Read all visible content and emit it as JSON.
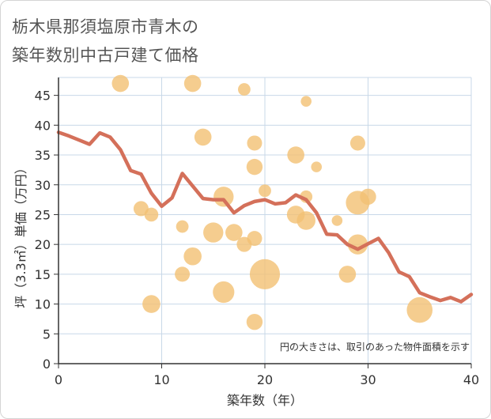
{
  "title_line1": "栃木県那須塩原市青木の",
  "title_line2": "築年数別中古戸建て価格",
  "chart_data": {
    "type": "scatter",
    "title": "栃木県那須塩原市青木の築年数別中古戸建て価格",
    "xlabel": "築年数（年）",
    "ylabel": "坪（3.3㎡）単価（万円）",
    "xlim": [
      0,
      40
    ],
    "ylim": [
      0,
      48
    ],
    "xticks": [
      0,
      10,
      20,
      30,
      40
    ],
    "yticks": [
      0,
      5,
      10,
      15,
      20,
      25,
      30,
      35,
      40,
      45
    ],
    "grid": true,
    "annotation": "円の大きさは、取引のあった物件面積を示す",
    "colors": {
      "bubble": "#f3c073",
      "trend": "#d4705a",
      "grid": "#c8d8e8",
      "axis": "#333333"
    },
    "bubbles": [
      {
        "x": 6,
        "y": 47,
        "size": 3
      },
      {
        "x": 13,
        "y": 47,
        "size": 3
      },
      {
        "x": 18,
        "y": 46,
        "size": 1
      },
      {
        "x": 24,
        "y": 44,
        "size": 0.5
      },
      {
        "x": 14,
        "y": 38,
        "size": 3
      },
      {
        "x": 19,
        "y": 37,
        "size": 2
      },
      {
        "x": 29,
        "y": 37,
        "size": 2
      },
      {
        "x": 23,
        "y": 35,
        "size": 3
      },
      {
        "x": 25,
        "y": 33,
        "size": 0.5
      },
      {
        "x": 19,
        "y": 33,
        "size": 2.5
      },
      {
        "x": 20,
        "y": 29,
        "size": 1
      },
      {
        "x": 16,
        "y": 28,
        "size": 5
      },
      {
        "x": 24,
        "y": 28,
        "size": 1
      },
      {
        "x": 29,
        "y": 27,
        "size": 8
      },
      {
        "x": 30,
        "y": 28,
        "size": 2.5
      },
      {
        "x": 8,
        "y": 26,
        "size": 2
      },
      {
        "x": 9,
        "y": 25,
        "size": 1.5
      },
      {
        "x": 23,
        "y": 25,
        "size": 3.5
      },
      {
        "x": 24,
        "y": 24,
        "size": 4
      },
      {
        "x": 27,
        "y": 24,
        "size": 0.5
      },
      {
        "x": 12,
        "y": 23,
        "size": 1
      },
      {
        "x": 15,
        "y": 22,
        "size": 5
      },
      {
        "x": 17,
        "y": 22,
        "size": 3
      },
      {
        "x": 19,
        "y": 21,
        "size": 2
      },
      {
        "x": 18,
        "y": 20,
        "size": 2
      },
      {
        "x": 29,
        "y": 20,
        "size": 5
      },
      {
        "x": 13,
        "y": 18,
        "size": 3.5
      },
      {
        "x": 12,
        "y": 15,
        "size": 2
      },
      {
        "x": 20,
        "y": 15,
        "size": 15
      },
      {
        "x": 28,
        "y": 15,
        "size": 3
      },
      {
        "x": 16,
        "y": 12,
        "size": 6
      },
      {
        "x": 9,
        "y": 10,
        "size": 3.5
      },
      {
        "x": 35,
        "y": 9,
        "size": 10
      },
      {
        "x": 19,
        "y": 7,
        "size": 2.5
      }
    ],
    "trend_line": {
      "x": [
        0,
        1,
        2,
        3,
        4,
        5,
        6,
        7,
        8,
        9,
        10,
        11,
        12,
        13,
        14,
        15,
        16,
        17,
        18,
        19,
        20,
        21,
        22,
        23,
        24,
        25,
        26,
        27,
        28,
        29,
        30,
        31,
        32,
        33,
        34,
        35,
        36,
        37,
        38,
        39,
        40
      ],
      "y": [
        38.8,
        38.2,
        37.5,
        36.8,
        38.7,
        38.0,
        35.9,
        32.4,
        31.8,
        28.6,
        26.4,
        27.8,
        31.9,
        29.8,
        27.7,
        27.5,
        27.5,
        25.3,
        26.5,
        27.2,
        27.5,
        26.8,
        27.0,
        28.3,
        27.5,
        25.3,
        21.7,
        21.6,
        20.0,
        19.2,
        20.1,
        21.0,
        18.6,
        15.4,
        14.6,
        11.9,
        11.2,
        10.6,
        11.1,
        10.4,
        11.6
      ]
    }
  }
}
